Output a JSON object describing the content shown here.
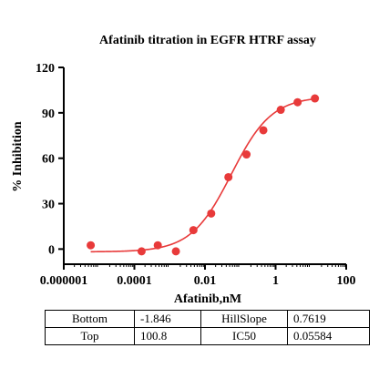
{
  "chart_data": {
    "type": "scatter",
    "title": "Afatinib titration in EGFR  HTRF assay",
    "xlabel": "Afatinib,nM",
    "ylabel": "% Inhibition",
    "x_scale": "log",
    "xlim": [
      1e-06,
      100
    ],
    "ylim": [
      -10,
      120
    ],
    "x_ticks": [
      "0.000001",
      "0.0001",
      "0.01",
      "1",
      "100"
    ],
    "x_tick_values": [
      1e-06,
      0.0001,
      0.01,
      1,
      100
    ],
    "y_ticks": [
      "0",
      "30",
      "60",
      "90",
      "120"
    ],
    "y_tick_values": [
      0,
      30,
      60,
      90,
      120
    ],
    "grid": false,
    "color": "#e83a3a",
    "series": [
      {
        "points": [
          {
            "x": 5.8e-06,
            "y": 2.5
          },
          {
            "x": 0.00016,
            "y": -1.5
          },
          {
            "x": 0.00046,
            "y": 2.5
          },
          {
            "x": 0.0015,
            "y": -1.5
          },
          {
            "x": 0.0047,
            "y": 12.5
          },
          {
            "x": 0.015,
            "y": 23.5
          },
          {
            "x": 0.046,
            "y": 47.5
          },
          {
            "x": 0.15,
            "y": 62.5
          },
          {
            "x": 0.45,
            "y": 78.5
          },
          {
            "x": 1.4,
            "y": 92.0
          },
          {
            "x": 4.2,
            "y": 97.0
          },
          {
            "x": 13.0,
            "y": 99.5
          }
        ],
        "fit": {
          "bottom": -1.846,
          "top": 100.8,
          "hill_slope": 0.7619,
          "ic50": 0.05584,
          "x_range": [
            5.8e-06,
            13.0
          ]
        }
      }
    ]
  },
  "params_table": {
    "rows": [
      [
        {
          "name": "Bottom",
          "value": "-1.846"
        },
        {
          "name": "HillSlope",
          "value": "0.7619"
        }
      ],
      [
        {
          "name": "Top",
          "value": "100.8"
        },
        {
          "name": "IC50",
          "value": "0.05584"
        }
      ]
    ]
  }
}
